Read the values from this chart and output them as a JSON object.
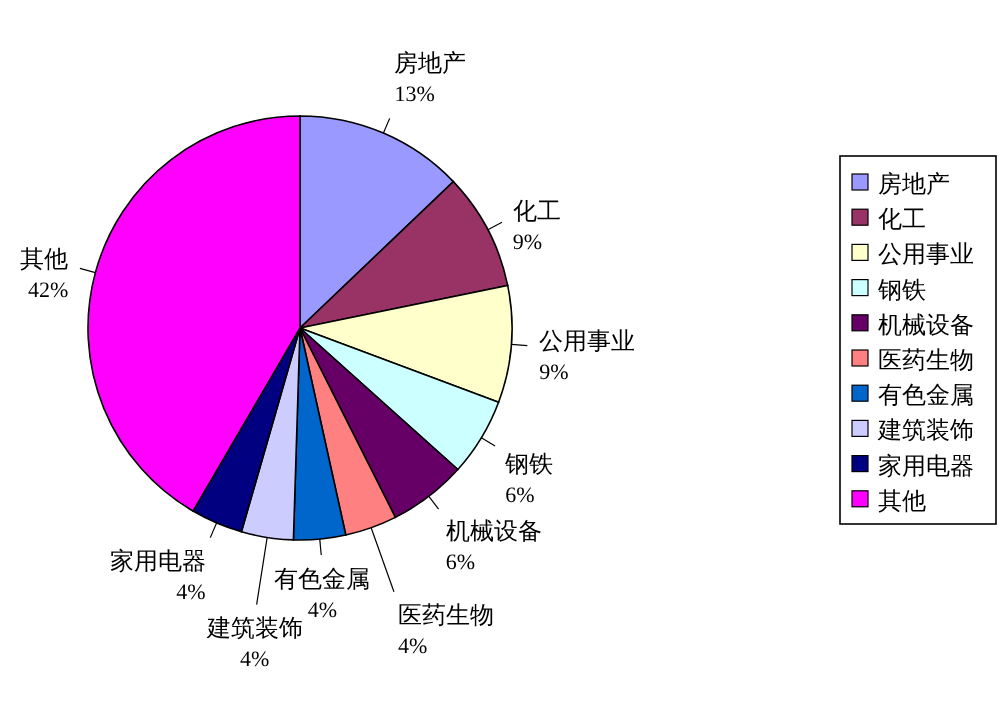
{
  "chart_data": {
    "type": "pie",
    "categories": [
      "房地产",
      "化工",
      "公用事业",
      "钢铁",
      "机械设备",
      "医药生物",
      "有色金属",
      "建筑装饰",
      "家用电器",
      "其他"
    ],
    "values": [
      13,
      9,
      9,
      6,
      6,
      4,
      4,
      4,
      4,
      42
    ],
    "colors": [
      "#9999ff",
      "#993366",
      "#ffffcc",
      "#ccffff",
      "#660066",
      "#ff8080",
      "#0066cc",
      "#ccccff",
      "#000080",
      "#ff00ff"
    ],
    "value_labels": [
      "13%",
      "9%",
      "9%",
      "6%",
      "6%",
      "4%",
      "4%",
      "4%",
      "4%",
      "42%"
    ],
    "legend": "right"
  }
}
